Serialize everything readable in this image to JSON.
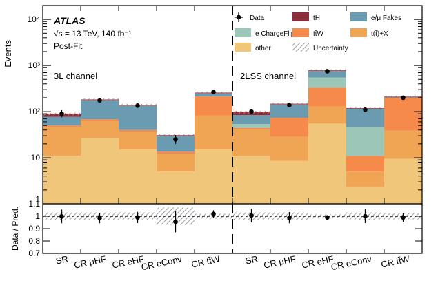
{
  "chart_data": {
    "type": "bar",
    "stacked": true,
    "yscale": "log",
    "ylim": [
      1,
      20000
    ],
    "ratio_ylim": [
      0.7,
      1.1
    ],
    "ylabel": "Events",
    "ratio_ylabel": "Data / Pred.",
    "bin_labels": [
      "SR",
      "CR μHF",
      "CR eHF",
      "CR eConv",
      "CR tt̄W",
      "SR",
      "CR μHF",
      "CR eHF",
      "CR eConv",
      "CR tt̄W"
    ],
    "axis_labels": {
      "main_major": [
        "1",
        "10",
        "10²",
        "10³",
        "10⁴"
      ],
      "ratio": [
        "0.7",
        "0.8",
        "0.9",
        "1",
        "1.1"
      ]
    },
    "text": {
      "atlas": "ATLAS",
      "energy": "√s = 13 TeV, 140 fb⁻¹",
      "postfit": "Post-Fit",
      "channel_3l": "3L channel",
      "channel_2lss": "2LSS channel"
    },
    "legend": [
      {
        "key": "data",
        "label": "Data"
      },
      {
        "key": "tH",
        "label": "tH"
      },
      {
        "key": "fakes",
        "label": "e/μ Fakes"
      },
      {
        "key": "chargeflip",
        "label": "e ChargeFlip"
      },
      {
        "key": "ttw",
        "label": "tt̄W"
      },
      {
        "key": "ttx",
        "label": "t(t̄)+X"
      },
      {
        "key": "other",
        "label": "other"
      },
      {
        "key": "unc",
        "label": "Uncertainty"
      }
    ],
    "colors": {
      "other": "#f0c67a",
      "ttx": "#f0a555",
      "ttw": "#f58a4b",
      "chargeflip": "#9cc7b8",
      "fakes": "#6a9bb0",
      "tH": "#8b2e3c",
      "data": "#000000"
    },
    "series": [
      {
        "name": "other",
        "values": [
          11,
          27,
          15,
          5,
          15,
          11,
          8.5,
          55,
          2.3,
          9.5
        ]
      },
      {
        "name": "ttx",
        "values": [
          36,
          35,
          22,
          7,
          68,
          30,
          20,
          75,
          2.7,
          29
        ]
      },
      {
        "name": "ttw",
        "values": [
          3,
          6,
          3,
          1.5,
          130,
          3,
          45,
          200,
          6,
          160
        ]
      },
      {
        "name": "chargeflip",
        "values": [
          0,
          0,
          0,
          0,
          0,
          10,
          0,
          220,
          36,
          0
        ]
      },
      {
        "name": "fakes",
        "values": [
          27,
          113,
          98,
          17,
          42,
          30,
          73,
          230,
          70,
          10
        ]
      },
      {
        "name": "tH",
        "values": [
          12,
          0,
          0,
          0,
          0,
          14,
          0,
          0,
          0,
          0
        ]
      }
    ],
    "data_points": [
      {
        "value": 90,
        "err_low": 15,
        "err_high": 18
      },
      {
        "value": 175,
        "err_low": 13,
        "err_high": 14
      },
      {
        "value": 135,
        "err_low": 11,
        "err_high": 12
      },
      {
        "value": 25,
        "err_low": 5,
        "err_high": 6
      },
      {
        "value": 265,
        "err_low": 16,
        "err_high": 17
      },
      {
        "value": 100,
        "err_low": 10,
        "err_high": 11
      },
      {
        "value": 138,
        "err_low": 12,
        "err_high": 13
      },
      {
        "value": 750,
        "err_low": 27,
        "err_high": 28
      },
      {
        "value": 110,
        "err_low": 10,
        "err_high": 11
      },
      {
        "value": 200,
        "err_low": 14,
        "err_high": 15
      }
    ],
    "ratio": {
      "values": [
        0.998,
        0.985,
        0.99,
        0.955,
        1.018,
        1.005,
        0.988,
        0.99,
        1.0,
        0.99
      ],
      "err": [
        0.055,
        0.042,
        0.045,
        0.085,
        0.03,
        0.055,
        0.045,
        0.015,
        0.055,
        0.035
      ],
      "band": [
        0.03,
        0.03,
        0.03,
        0.07,
        0.02,
        0.03,
        0.03,
        0.015,
        0.03,
        0.025
      ]
    }
  }
}
